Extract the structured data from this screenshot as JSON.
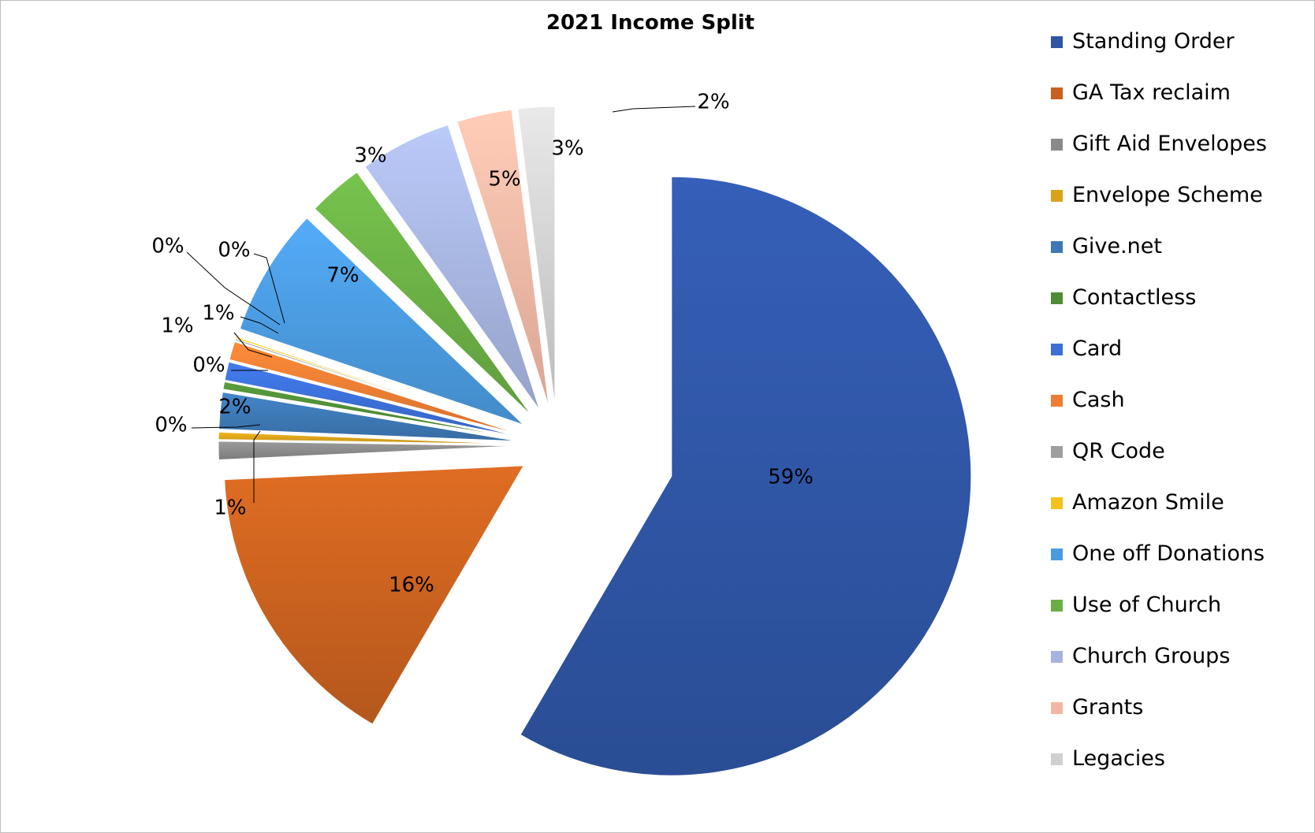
{
  "chart_data": {
    "type": "pie",
    "title": "2021 Income Split",
    "legend_position": "right",
    "exploded": true,
    "slices": [
      {
        "name": "Standing Order",
        "value": 59,
        "label": "59%",
        "color": "#2f55a4"
      },
      {
        "name": "GA Tax reclaim",
        "value": 16,
        "label": "16%",
        "color": "#c8611f"
      },
      {
        "name": "Gift Aid Envelopes",
        "value": 1,
        "label": "1%",
        "color": "#8a8a8a"
      },
      {
        "name": "Envelope Scheme",
        "value": 0.4,
        "label": "0%",
        "color": "#d9a21b"
      },
      {
        "name": "Give.net",
        "value": 2,
        "label": "2%",
        "color": "#3d78b4"
      },
      {
        "name": "Contactless",
        "value": 0.4,
        "label": "0%",
        "color": "#4f8c35"
      },
      {
        "name": "Card",
        "value": 1,
        "label": "1%",
        "color": "#3b6fd6"
      },
      {
        "name": "Cash",
        "value": 1,
        "label": "1%",
        "color": "#ee7d33"
      },
      {
        "name": "QR Code",
        "value": 0.1,
        "label": "0%",
        "color": "#9e9e9e"
      },
      {
        "name": "Amazon Smile",
        "value": 0.1,
        "label": "0%",
        "color": "#f4c21a"
      },
      {
        "name": "One off Donations",
        "value": 7,
        "label": "7%",
        "color": "#4a9ade"
      },
      {
        "name": "Use of Church",
        "value": 3,
        "label": "3%",
        "color": "#6aae45"
      },
      {
        "name": "Church Groups",
        "value": 5,
        "label": "5%",
        "color": "#a6b4de"
      },
      {
        "name": "Grants",
        "value": 3,
        "label": "3%",
        "color": "#f2b7a4"
      },
      {
        "name": "Legacies",
        "value": 2,
        "label": "2%",
        "color": "#d0d0d0"
      }
    ]
  }
}
